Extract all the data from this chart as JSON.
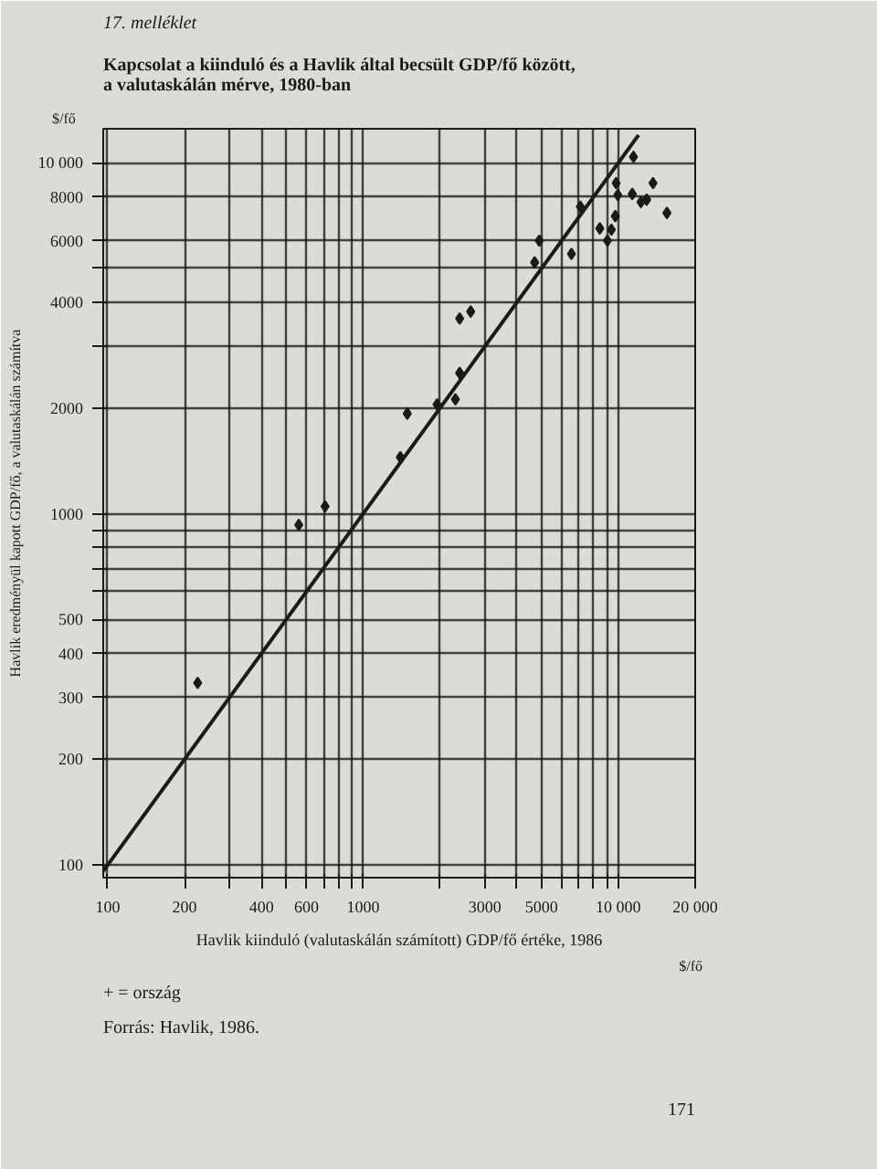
{
  "chart_data": {
    "type": "scatter",
    "title": "17. melléklet",
    "subtitle": "Kapcsolat a kiinduló és a Havlik által becsült GDP/fő között,\na valutaskálán mérve, 1980-ban",
    "xlabel": "Havlik kiinduló (valutaskálán számított) GDP/fő értéke, 1986",
    "ylabel": "Havlik eredményül kapott GDP/fő, a valutaskálán számítva",
    "annotations": [
      "$/fő",
      "$/fő",
      "+ = ország",
      "Forrás: Havlik, 1986.",
      "171"
    ],
    "log": "xy",
    "grid": true,
    "marker": "diamond",
    "xlim": [
      96,
      20000
    ],
    "ylim": [
      92,
      12500
    ],
    "xticks": [
      100,
      200,
      {
        "value": 300,
        "label": null
      },
      400,
      {
        "value": 500,
        "label": null
      },
      600,
      {
        "value": 700,
        "label": null
      },
      {
        "value": 800,
        "label": null
      },
      {
        "value": 900,
        "label": null
      },
      1000,
      {
        "value": 2000,
        "label": null
      },
      3000,
      {
        "value": 4000,
        "label": null
      },
      5000,
      {
        "value": 6000,
        "label": null
      },
      {
        "value": 7000,
        "label": null
      },
      {
        "value": 8000,
        "label": null
      },
      {
        "value": 9000,
        "label": null
      },
      {
        "value": 10000,
        "label": "10 000"
      },
      {
        "value": 20000,
        "label": "20 000"
      }
    ],
    "yticks": [
      100,
      200,
      300,
      400,
      500,
      {
        "value": 600,
        "label": null
      },
      {
        "value": 700,
        "label": null
      },
      {
        "value": 800,
        "label": null
      },
      {
        "value": 900,
        "label": null
      },
      1000,
      2000,
      {
        "value": 3000,
        "label": null
      },
      4000,
      {
        "value": 5000,
        "label": null
      },
      6000,
      8000,
      {
        "value": 10000,
        "label": "10 000"
      }
    ],
    "series": [
      {
        "color": "#1a1a1a",
        "x": [
          225,
          560,
          710,
          1400,
          1490,
          1950,
          2300,
          2390,
          2390,
          2640,
          4700,
          4900,
          6550,
          7100,
          8460,
          9060,
          9390,
          9730,
          9950,
          11340,
          12260,
          12910,
          15500,
          9800,
          11460,
          13670
        ],
        "values": [
          330,
          930,
          1050,
          1450,
          1930,
          2050,
          2120,
          2520,
          3600,
          3770,
          5200,
          6000,
          5500,
          7500,
          6500,
          6000,
          6450,
          7050,
          8100,
          8150,
          7730,
          7850,
          7200,
          8750,
          10400,
          8750
        ]
      },
      {
        "type": "line",
        "color": "#1a1a1a",
        "line_style": "solid",
        "marker": "none",
        "x": [
          96,
          12000
        ],
        "values": [
          96,
          12000
        ]
      }
    ]
  }
}
